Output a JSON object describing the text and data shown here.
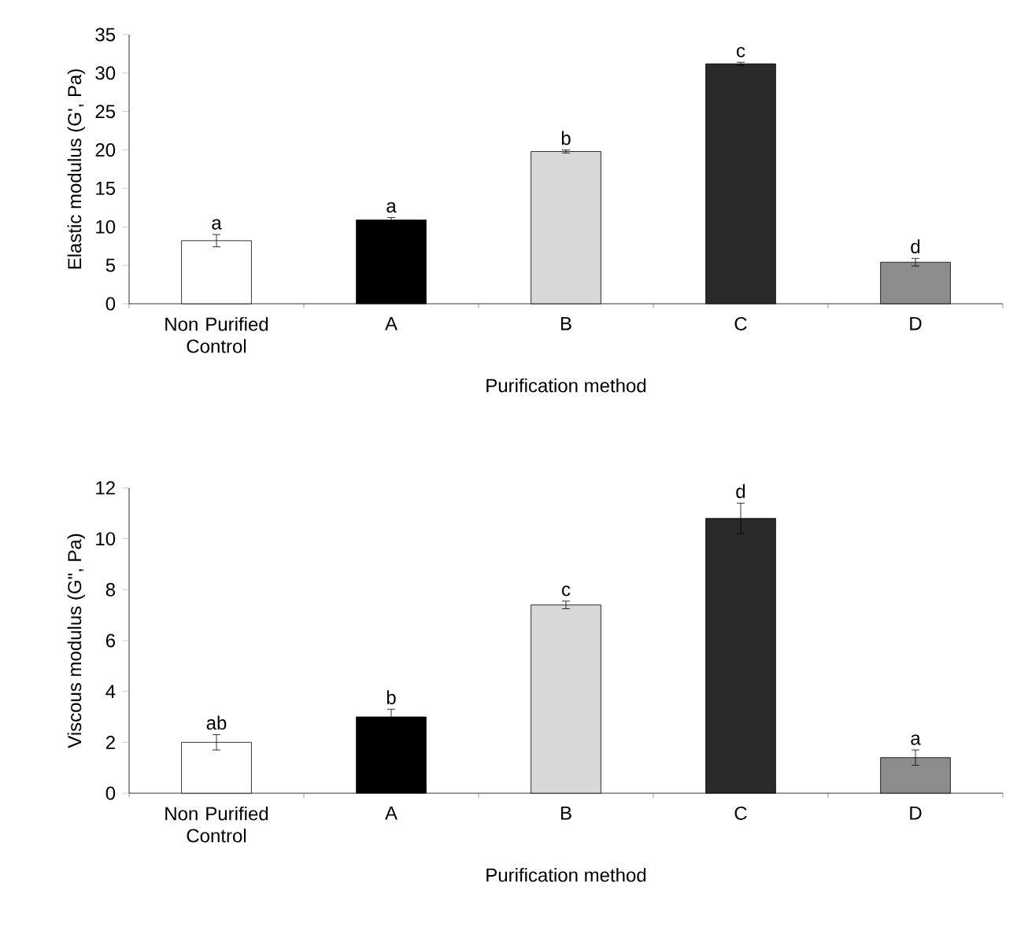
{
  "chart_data": [
    {
      "type": "bar",
      "ylabel": "Elastic modulus (G', Pa)",
      "xlabel": "Purification method",
      "categories": [
        "Non Purified Control",
        "A",
        "B",
        "C",
        "D"
      ],
      "values": [
        8.2,
        10.9,
        19.8,
        31.2,
        5.4
      ],
      "errors": [
        0.8,
        0.3,
        0.2,
        0.2,
        0.5
      ],
      "colors": [
        "#ffffff",
        "#000000",
        "#d8d8d8",
        "#2a2a2a",
        "#8c8c8c"
      ],
      "ylim": [
        0,
        35
      ],
      "yticks": [
        0,
        5,
        10,
        15,
        20,
        25,
        30,
        35
      ],
      "grid": false,
      "annotations": [
        {
          "text": "a",
          "x": "Non Purified Control",
          "y": 9.0
        },
        {
          "text": "a",
          "x": "A",
          "y": 11.2
        },
        {
          "text": "b",
          "x": "B",
          "y": 20.0
        },
        {
          "text": "c",
          "x": "C",
          "y": 31.4
        },
        {
          "text": "d",
          "x": "D",
          "y": 5.9
        }
      ]
    },
    {
      "type": "bar",
      "ylabel": "Viscous modulus (G\", Pa)",
      "xlabel": "Purification method",
      "categories": [
        "Non Purified Control",
        "A",
        "B",
        "C",
        "D"
      ],
      "values": [
        2.0,
        3.0,
        7.4,
        10.8,
        1.4
      ],
      "errors": [
        0.3,
        0.3,
        0.15,
        0.6,
        0.3
      ],
      "colors": [
        "#ffffff",
        "#000000",
        "#d8d8d8",
        "#2a2a2a",
        "#8c8c8c"
      ],
      "ylim": [
        0,
        12
      ],
      "yticks": [
        0,
        2,
        4,
        6,
        8,
        10,
        12
      ],
      "grid": false,
      "annotations": [
        {
          "text": "ab",
          "x": "Non Purified Control",
          "y": 2.3
        },
        {
          "text": "b",
          "x": "A",
          "y": 3.3
        },
        {
          "text": "c",
          "x": "B",
          "y": 7.55
        },
        {
          "text": "d",
          "x": "C",
          "y": 11.4
        },
        {
          "text": "a",
          "x": "D",
          "y": 1.7
        }
      ]
    }
  ]
}
